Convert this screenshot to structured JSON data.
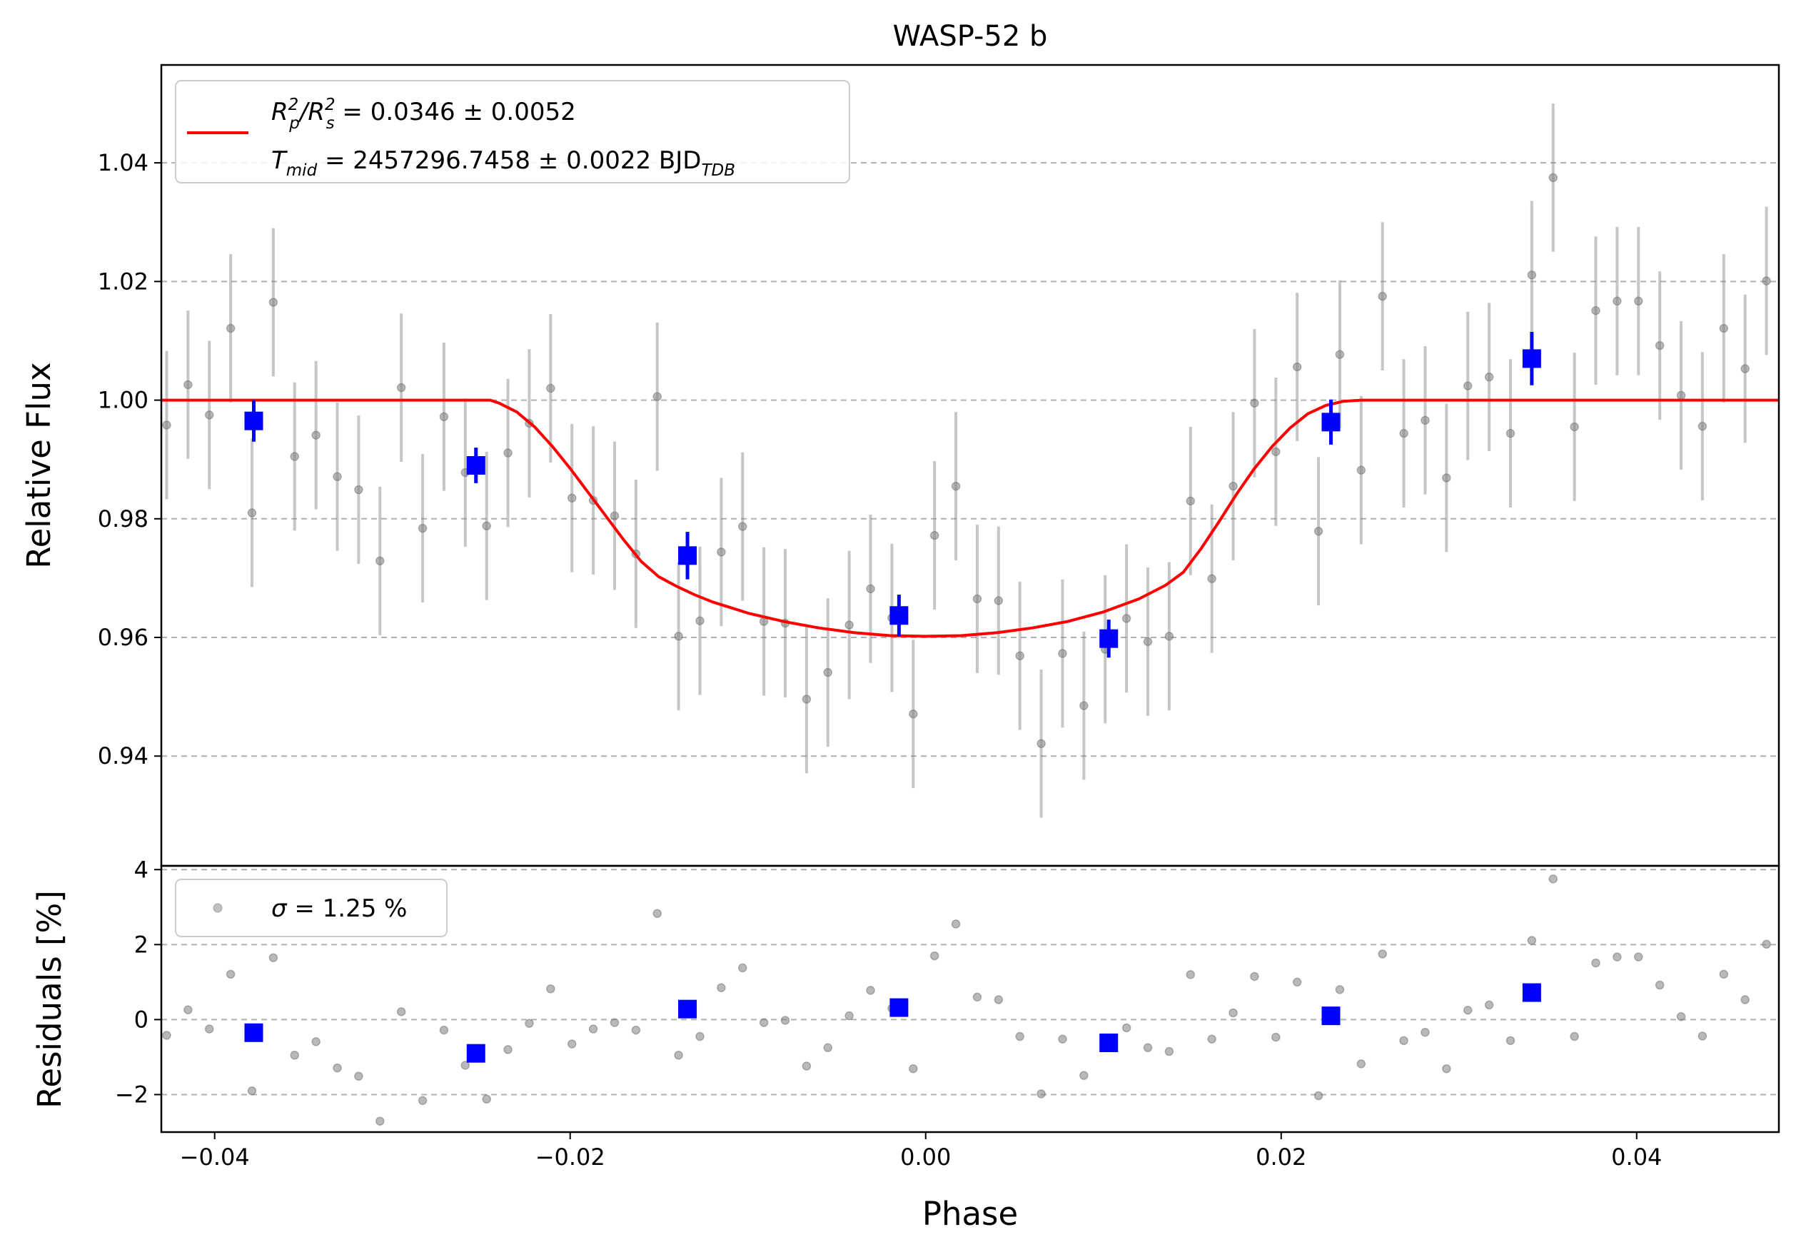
{
  "chart_data": [
    {
      "type": "scatter",
      "panel": "main",
      "title": "WASP-52 b",
      "xlabel": "",
      "ylabel": "Relative Flux",
      "xlim": [
        -0.043,
        0.048
      ],
      "ylim": [
        0.9215,
        1.0565
      ],
      "yticks": [
        0.94,
        0.96,
        0.98,
        1.0,
        1.02,
        1.04
      ],
      "ytick_labels": [
        "0.94",
        "0.96",
        "0.98",
        "1.00",
        "1.02",
        "1.04"
      ],
      "grid": "horizontal dashed",
      "legend_position": "upper-left",
      "legend": {
        "line1": {
          "prefix": "R",
          "sub1": "p",
          "sup1": "2",
          "sep": "/R",
          "sub2": "s",
          "sup2": "2",
          "value": " = 0.0346 ± 0.0052"
        },
        "line2": {
          "prefix": "T",
          "sub": "mid",
          "value": " = 2457296.7458 ± 0.0022 BJD",
          "suffix_sub": "TDB"
        }
      },
      "model": {
        "name": "model",
        "color": "#ff0000",
        "x": [
          -0.043,
          -0.0245,
          -0.024,
          -0.023,
          -0.022,
          -0.021,
          -0.02,
          -0.019,
          -0.018,
          -0.017,
          -0.016,
          -0.015,
          -0.014,
          -0.013,
          -0.012,
          -0.01,
          -0.008,
          -0.006,
          -0.004,
          -0.002,
          0.0,
          0.002,
          0.004,
          0.006,
          0.008,
          0.01,
          0.012,
          0.0135,
          0.0145,
          0.0155,
          0.0165,
          0.0175,
          0.0185,
          0.0195,
          0.0205,
          0.0215,
          0.0225,
          0.0235,
          0.0245,
          0.025,
          0.048
        ],
        "y": [
          1.0,
          1.0,
          0.9995,
          0.998,
          0.9955,
          0.9922,
          0.9885,
          0.9845,
          0.9805,
          0.9765,
          0.9728,
          0.9702,
          0.9686,
          0.9672,
          0.966,
          0.9641,
          0.9627,
          0.9616,
          0.9608,
          0.9603,
          0.9602,
          0.9603,
          0.9608,
          0.9616,
          0.9627,
          0.9643,
          0.9665,
          0.9688,
          0.971,
          0.975,
          0.9795,
          0.9842,
          0.9885,
          0.9922,
          0.9953,
          0.9977,
          0.9991,
          0.9998,
          1.0,
          1.0,
          1.0
        ]
      },
      "data": {
        "name": "data",
        "color": "#808080",
        "yerr": 0.0125,
        "points": [
          [
            -0.0427,
            0.9958
          ],
          [
            -0.0415,
            1.0026
          ],
          [
            -0.0403,
            0.9975
          ],
          [
            -0.0391,
            1.0121
          ],
          [
            -0.0379,
            0.981
          ],
          [
            -0.0367,
            1.0165
          ],
          [
            -0.0355,
            0.9905
          ],
          [
            -0.0343,
            0.9941
          ],
          [
            -0.0331,
            0.9871
          ],
          [
            -0.0319,
            0.9849
          ],
          [
            -0.0307,
            0.9729
          ],
          [
            -0.0295,
            1.0021
          ],
          [
            -0.0283,
            0.9784
          ],
          [
            -0.0271,
            0.9972
          ],
          [
            -0.0259,
            0.9878
          ],
          [
            -0.0247,
            0.9788
          ],
          [
            -0.0235,
            0.9911
          ],
          [
            -0.0223,
            0.9961
          ],
          [
            -0.0211,
            1.002
          ],
          [
            -0.0199,
            0.9835
          ],
          [
            -0.0187,
            0.9831
          ],
          [
            -0.0175,
            0.9805
          ],
          [
            -0.0163,
            0.9741
          ],
          [
            -0.0151,
            1.0006
          ],
          [
            -0.0139,
            0.9602
          ],
          [
            -0.0127,
            0.9628
          ],
          [
            -0.0115,
            0.9744
          ],
          [
            -0.0103,
            0.9787
          ],
          [
            -0.0091,
            0.9627
          ],
          [
            -0.0079,
            0.9624
          ],
          [
            -0.0067,
            0.9496
          ],
          [
            -0.0055,
            0.9541
          ],
          [
            -0.0043,
            0.9621
          ],
          [
            -0.0031,
            0.9682
          ],
          [
            -0.0019,
            0.9633
          ],
          [
            -0.0007,
            0.9471
          ],
          [
            0.0005,
            0.9772
          ],
          [
            0.0017,
            0.9855
          ],
          [
            0.0029,
            0.9665
          ],
          [
            0.0041,
            0.9662
          ],
          [
            0.0053,
            0.9569
          ],
          [
            0.0065,
            0.9421
          ],
          [
            0.0077,
            0.9573
          ],
          [
            0.0089,
            0.9485
          ],
          [
            0.0101,
            0.958
          ],
          [
            0.0113,
            0.9632
          ],
          [
            0.0125,
            0.9593
          ],
          [
            0.0137,
            0.9602
          ],
          [
            0.0149,
            0.983
          ],
          [
            0.0161,
            0.9699
          ],
          [
            0.0173,
            0.9855
          ],
          [
            0.0185,
            0.9995
          ],
          [
            0.0197,
            0.9913
          ],
          [
            0.0209,
            1.0056
          ],
          [
            0.0221,
            0.9779
          ],
          [
            0.0233,
            1.0077
          ],
          [
            0.0245,
            0.9882
          ],
          [
            0.0257,
            1.0175
          ],
          [
            0.0269,
            0.9944
          ],
          [
            0.0281,
            0.9966
          ],
          [
            0.0293,
            0.9869
          ],
          [
            0.0305,
            1.0024
          ],
          [
            0.0317,
            1.0039
          ],
          [
            0.0329,
            0.9944
          ],
          [
            0.0341,
            1.0211
          ],
          [
            0.0353,
            1.0375
          ],
          [
            0.0365,
            0.9955
          ],
          [
            0.0377,
            1.0151
          ],
          [
            0.0389,
            1.0167
          ],
          [
            0.0401,
            1.0167
          ],
          [
            0.0413,
            1.0092
          ],
          [
            0.0425,
            1.0008
          ],
          [
            0.0437,
            0.9956
          ],
          [
            0.0449,
            1.0121
          ],
          [
            0.0461,
            1.0053
          ],
          [
            0.0473,
            1.0201
          ]
        ]
      },
      "binned": {
        "name": "binned",
        "color": "#0000ff",
        "points": [
          {
            "x": -0.0378,
            "y": 0.9965,
            "yerr": 0.0035
          },
          {
            "x": -0.0253,
            "y": 0.989,
            "yerr": 0.003
          },
          {
            "x": -0.0134,
            "y": 0.9738,
            "yerr": 0.004
          },
          {
            "x": -0.0015,
            "y": 0.9637,
            "yerr": 0.0035
          },
          {
            "x": 0.0103,
            "y": 0.9598,
            "yerr": 0.0032
          },
          {
            "x": 0.0228,
            "y": 0.9963,
            "yerr": 0.0038
          },
          {
            "x": 0.0341,
            "y": 1.007,
            "yerr": 0.0045
          }
        ]
      }
    },
    {
      "type": "scatter",
      "panel": "residuals",
      "xlabel": "Phase",
      "ylabel": "Residuals [%]",
      "xlim": [
        -0.043,
        0.048
      ],
      "ylim": [
        -3.0,
        4.1
      ],
      "xticks": [
        -0.04,
        -0.02,
        0.0,
        0.02,
        0.04
      ],
      "xtick_labels": [
        "−0.04",
        "−0.02",
        "0.00",
        "0.02",
        "0.04"
      ],
      "yticks": [
        -2,
        0,
        2,
        4
      ],
      "ytick_labels": [
        "−2",
        "0",
        "2",
        "4"
      ],
      "grid": "horizontal dashed",
      "legend_position": "upper-left",
      "legend": {
        "prefix": "σ",
        "value": " = 1.25 %"
      },
      "data": {
        "name": "residuals",
        "color": "#808080",
        "points": [
          [
            -0.0435,
            0.0
          ],
          [
            -0.0427,
            -0.42
          ],
          [
            -0.0415,
            0.26
          ],
          [
            -0.0403,
            -0.25
          ],
          [
            -0.0391,
            1.21
          ],
          [
            -0.0379,
            -1.9
          ],
          [
            -0.0367,
            1.65
          ],
          [
            -0.0355,
            -0.95
          ],
          [
            -0.0343,
            -0.59
          ],
          [
            -0.0331,
            -1.29
          ],
          [
            -0.0319,
            -1.51
          ],
          [
            -0.0307,
            -2.71
          ],
          [
            -0.0295,
            0.21
          ],
          [
            -0.0283,
            -2.16
          ],
          [
            -0.0271,
            -0.28
          ],
          [
            -0.0259,
            -1.22
          ],
          [
            -0.0247,
            -2.12
          ],
          [
            -0.0235,
            -0.8
          ],
          [
            -0.0223,
            -0.1
          ],
          [
            -0.0211,
            0.82
          ],
          [
            -0.0199,
            -0.65
          ],
          [
            -0.0187,
            -0.25
          ],
          [
            -0.0175,
            -0.08
          ],
          [
            -0.0163,
            -0.28
          ],
          [
            -0.0151,
            2.83
          ],
          [
            -0.0139,
            -0.95
          ],
          [
            -0.0127,
            -0.45
          ],
          [
            -0.0115,
            0.85
          ],
          [
            -0.0103,
            1.38
          ],
          [
            -0.0091,
            -0.08
          ],
          [
            -0.0079,
            -0.02
          ],
          [
            -0.0067,
            -1.24
          ],
          [
            -0.0055,
            -0.75
          ],
          [
            -0.0043,
            0.1
          ],
          [
            -0.0031,
            0.78
          ],
          [
            -0.0019,
            0.3
          ],
          [
            -0.0007,
            -1.31
          ],
          [
            0.0005,
            1.7
          ],
          [
            0.0017,
            2.55
          ],
          [
            0.0029,
            0.6
          ],
          [
            0.0041,
            0.53
          ],
          [
            0.0053,
            -0.45
          ],
          [
            0.0065,
            -1.98
          ],
          [
            0.0077,
            -0.52
          ],
          [
            0.0089,
            -1.49
          ],
          [
            0.0101,
            -0.6
          ],
          [
            0.0113,
            -0.22
          ],
          [
            0.0125,
            -0.75
          ],
          [
            0.0137,
            -0.85
          ],
          [
            0.0149,
            1.2
          ],
          [
            0.0161,
            -0.52
          ],
          [
            0.0173,
            0.18
          ],
          [
            0.0185,
            1.15
          ],
          [
            0.0197,
            -0.47
          ],
          [
            0.0209,
            1.0
          ],
          [
            0.0221,
            -2.03
          ],
          [
            0.0233,
            0.8
          ],
          [
            0.0245,
            -1.18
          ],
          [
            0.0257,
            1.75
          ],
          [
            0.0269,
            -0.56
          ],
          [
            0.0281,
            -0.34
          ],
          [
            0.0293,
            -1.31
          ],
          [
            0.0305,
            0.25
          ],
          [
            0.0317,
            0.39
          ],
          [
            0.0329,
            -0.56
          ],
          [
            0.0341,
            2.11
          ],
          [
            0.0353,
            3.75
          ],
          [
            0.0365,
            -0.45
          ],
          [
            0.0377,
            1.51
          ],
          [
            0.0389,
            1.67
          ],
          [
            0.0401,
            1.67
          ],
          [
            0.0413,
            0.92
          ],
          [
            0.0425,
            0.08
          ],
          [
            0.0437,
            -0.44
          ],
          [
            0.0449,
            1.21
          ],
          [
            0.0461,
            0.53
          ],
          [
            0.0473,
            2.01
          ]
        ]
      },
      "binned": {
        "name": "binned residuals",
        "color": "#0000ff",
        "points": [
          [
            -0.0378,
            -0.35
          ],
          [
            -0.0253,
            -0.9
          ],
          [
            -0.0134,
            0.28
          ],
          [
            -0.0015,
            0.32
          ],
          [
            0.0103,
            -0.62
          ],
          [
            0.0228,
            0.1
          ],
          [
            0.0341,
            0.72
          ]
        ]
      }
    }
  ]
}
